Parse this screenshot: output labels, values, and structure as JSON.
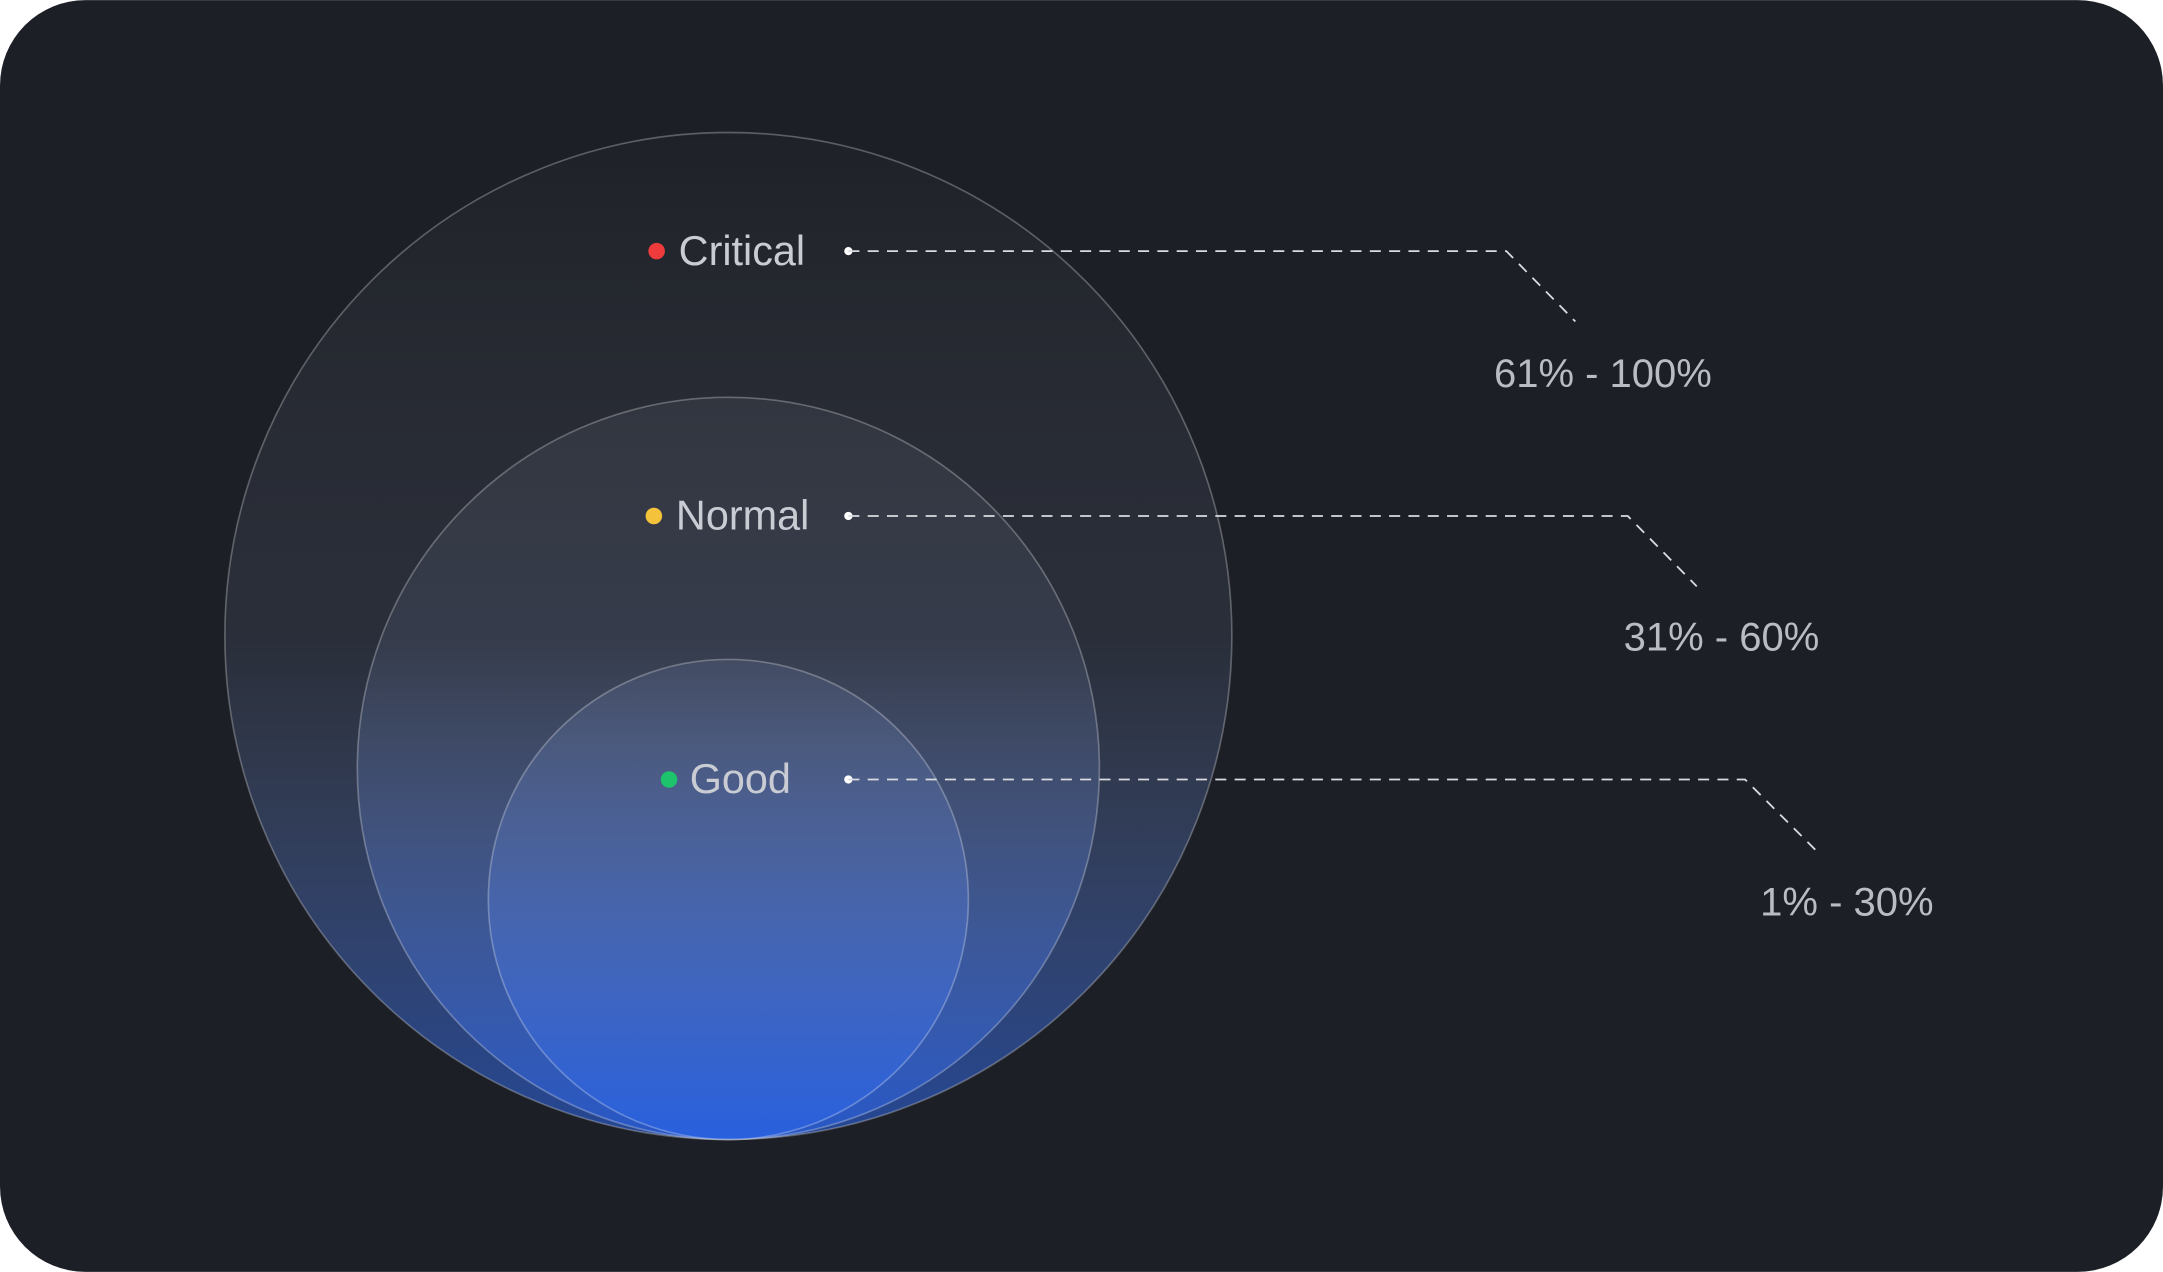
{
  "levels": [
    {
      "label": "Critical",
      "range": "61% - 100%"
    },
    {
      "label": "Normal",
      "range": "31% - 60%"
    },
    {
      "label": "Good",
      "range": "1% - 30%"
    }
  ]
}
